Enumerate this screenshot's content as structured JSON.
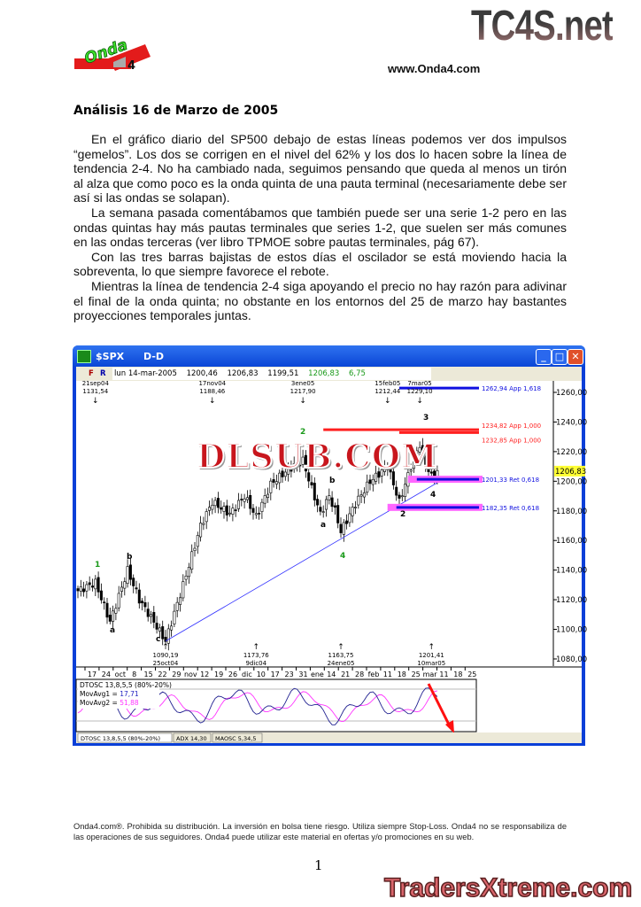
{
  "header": {
    "watermark_top": "TC4S.net",
    "logo_text": "Onda",
    "logo_number": "4",
    "website": "www.Onda4.com"
  },
  "title": "Análisis 16 de Marzo de 2005",
  "paragraphs": [
    "En el gráfico diario del SP500 debajo de estas líneas podemos ver dos impulsos “gemelos”. Los dos se corrigen en el nivel del 62% y los dos lo hacen sobre la línea de tendencia 2-4. No ha cambiado nada, seguimos pensando que queda al menos un tirón al alza que como poco es la onda quinta de una pauta terminal (necesariamente debe ser así si las ondas se solapan).",
    "La semana pasada comentábamos que también puede ser una serie 1-2 pero en las ondas quintas hay más pautas terminales que series 1-2, que suelen ser más comunes en las ondas terceras (ver libro TPMOE sobre pautas terminales, pág 67).",
    "Con las tres barras bajistas de estos días el oscilador se está moviendo hacia la sobreventa, lo que siempre favorece el rebote.",
    "Mientras la línea de tendencia 2-4 siga apoyando el precio no hay razón para adivinar el final de la onda quinta; no obstante en los entornos del 25 de marzo hay bastantes proyecciones temporales juntas."
  ],
  "chart_window": {
    "symbol": "$SPX",
    "period": "D-D",
    "buttons": {
      "minimize": "_",
      "maximize": "□",
      "close": "✕"
    },
    "toolbar": {
      "f": "F",
      "r": "R"
    },
    "quote": {
      "date": "lun 14-mar-2005",
      "open": "1200,46",
      "high": "1206,83",
      "low": "1199,51",
      "close": "1206,83",
      "change": "6,75"
    },
    "watermark": "DLSUB.COM",
    "tabs": [
      "DTOSC 13,8,5,5 (80%-20%)",
      "ADX 14,30",
      "MAOSC 5,34,5"
    ],
    "oscillator": {
      "name": "DTOSC 13,8,5,5 (80%-20%)",
      "movavg1_label": "MovAvg1 = ",
      "movavg1": "17,71",
      "movavg2_label": "MovAvg2 = ",
      "movavg2": "51,88"
    }
  },
  "chart_data": {
    "type": "candlestick",
    "ylim": [
      1070,
      1270
    ],
    "y_ticks": [
      "1260,00",
      "1240,00",
      "1220,00",
      "1200,00",
      "1180,00",
      "1160,00",
      "1140,00",
      "1120,00",
      "1100,00",
      "1080,00"
    ],
    "y_tick_values": [
      1260,
      1240,
      1220,
      1200,
      1180,
      1160,
      1140,
      1120,
      1100,
      1080
    ],
    "last_price": "1206,83",
    "x_ticks": [
      "17",
      "24",
      "oct",
      "8",
      "15",
      "22",
      "29",
      "nov",
      "12",
      "19",
      "26",
      "dic",
      "10",
      "17",
      "23",
      "31",
      "ene",
      "14",
      "21",
      "28",
      "feb",
      "11",
      "18",
      "25",
      "mar",
      "11",
      "18",
      "25"
    ],
    "high_markers": [
      {
        "date": "21sep04",
        "price": "1131,54",
        "value": 1131.54
      },
      {
        "date": "17nov04",
        "price": "1188,46",
        "value": 1188.46
      },
      {
        "date": "3ene05",
        "price": "1217,90",
        "value": 1217.9
      },
      {
        "date": "15feb05",
        "price": "1212,44",
        "value": 1212.44
      },
      {
        "date": "7mar05",
        "price": "1229,10",
        "value": 1229.1
      }
    ],
    "low_markers": [
      {
        "date": "25oct04",
        "price": "1090,19",
        "value": 1090.19
      },
      {
        "date": "9dic04",
        "price": "1173,76",
        "value": 1173.76
      },
      {
        "date": "24ene05",
        "price": "1163,75",
        "value": 1163.75
      },
      {
        "date": "10mar05",
        "price": "1201,41",
        "value": 1201.41
      }
    ],
    "levels": [
      {
        "label": "1262,94 App 1,618",
        "value": 1262.94,
        "color": "#1010e0"
      },
      {
        "label": "1234,82 App 1,000",
        "value": 1234.82,
        "color": "#ff2020"
      },
      {
        "label": "1232,85 App 1,000",
        "value": 1232.85,
        "color": "#ff2020"
      },
      {
        "label": "1201,33 Ret 0,618",
        "value": 1201.33,
        "color": "#1010e0"
      },
      {
        "label": "1182,35 Ret 0,618",
        "value": 1182.35,
        "color": "#1010e0"
      }
    ],
    "wave_labels": [
      "1",
      "a",
      "b",
      "c",
      "2",
      "a",
      "b",
      "4",
      "3",
      "2",
      "4"
    ],
    "oscillator_bounds": [
      "80%",
      "20%"
    ]
  },
  "footer": {
    "disclaimer": "Onda4.com®. Prohibida su distribución. La inversión en bolsa tiene riesgo. Utiliza siempre Stop-Loss. Onda4 no se responsabiliza de las operaciones de sus seguidores. Onda4 puede utilizar este material en ofertas y/o promociones en su web.",
    "page_number": "1",
    "watermark_bottom": "TradersXtreme.com"
  }
}
